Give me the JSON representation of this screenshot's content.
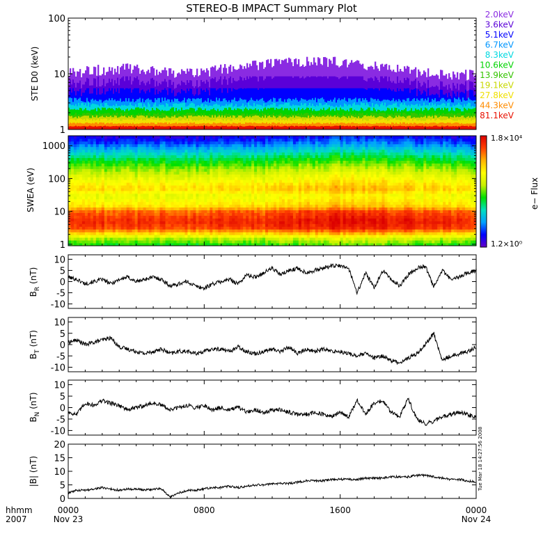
{
  "title": "STEREO-B IMPACT Summary Plot",
  "time_axis": {
    "hhmm_label": "hhmm",
    "year_label": "2007",
    "range_hours": [
      0,
      24
    ],
    "ticks": [
      {
        "hour": 0,
        "label": "0000",
        "date": "Nov 23"
      },
      {
        "hour": 8,
        "label": "0800",
        "date": ""
      },
      {
        "hour": 16,
        "label": "1600",
        "date": ""
      },
      {
        "hour": 24,
        "label": "0000",
        "date": "Nov 24"
      }
    ]
  },
  "side_stamp": "Tue Mar 18 14:27:56 2008",
  "colors": {
    "frame": "#000000",
    "trace": "#000000"
  },
  "colorbar": {
    "label": "e− Flux",
    "max_label": "1.8×10⁴",
    "min_label": "1.2×10⁰",
    "stops": [
      "#6400c8",
      "#0000ff",
      "#00a0ff",
      "#00e0c0",
      "#00e000",
      "#c8f000",
      "#ffff00",
      "#ffb400",
      "#ff4000",
      "#dc0000"
    ]
  },
  "chart_data": [
    {
      "type": "bar",
      "panel": "ste",
      "ylabel": "STE D0 (keV)",
      "yscale": "log",
      "ylim": [
        1,
        100
      ],
      "yticks": [
        "1",
        "10",
        "100"
      ],
      "channels": [
        {
          "name": "2.0keV",
          "color": "#8a2be2",
          "typical_top": 9.5,
          "peak_top": 24
        },
        {
          "name": "3.6keV",
          "color": "#5a00d8",
          "typical_top": 6.0,
          "peak_top": 9
        },
        {
          "name": "5.1keV",
          "color": "#0000ff",
          "typical_top": 4.3,
          "peak_top": 5.5
        },
        {
          "name": "6.7keV",
          "color": "#0096ff",
          "typical_top": 3.4,
          "peak_top": 3.9
        },
        {
          "name": "8.3keV",
          "color": "#00d8e0",
          "typical_top": 2.8,
          "peak_top": 3.1
        },
        {
          "name": "10.6keV",
          "color": "#00d400",
          "typical_top": 2.3,
          "peak_top": 2.5
        },
        {
          "name": "13.9keV",
          "color": "#34c400",
          "typical_top": 1.9,
          "peak_top": 2.0
        },
        {
          "name": "19.1keV",
          "color": "#c8d800",
          "typical_top": 1.7,
          "peak_top": 1.8
        },
        {
          "name": "27.8keV",
          "color": "#f0e000",
          "typical_top": 1.5,
          "peak_top": 1.6
        },
        {
          "name": "44.3keV",
          "color": "#ff8c00",
          "typical_top": 1.3,
          "peak_top": 1.4
        },
        {
          "name": "81.1keV",
          "color": "#e81000",
          "typical_top": 1.15,
          "peak_top": 1.2
        }
      ]
    },
    {
      "type": "heatmap",
      "panel": "swea",
      "ylabel": "SWEA (eV)",
      "yscale": "log",
      "ylim": [
        0.9,
        2000
      ],
      "yticks": [
        "1",
        "10",
        "100",
        "1000"
      ],
      "zscale": "log",
      "zlim": [
        1.2,
        18000
      ],
      "energy_bands": [
        {
          "ev": 1,
          "level": 0.45
        },
        {
          "ev": 1.5,
          "level": 0.55
        },
        {
          "ev": 3,
          "level": 0.88
        },
        {
          "ev": 5,
          "level": 0.93
        },
        {
          "ev": 10,
          "level": 0.85
        },
        {
          "ev": 15,
          "level": 0.7
        },
        {
          "ev": 30,
          "level": 0.62
        },
        {
          "ev": 50,
          "level": 0.72
        },
        {
          "ev": 100,
          "level": 0.62
        },
        {
          "ev": 200,
          "level": 0.52
        },
        {
          "ev": 400,
          "level": 0.4
        },
        {
          "ev": 700,
          "level": 0.28
        },
        {
          "ev": 1200,
          "level": 0.16
        },
        {
          "ev": 1900,
          "level": 0.08
        }
      ]
    },
    {
      "type": "line",
      "panel": "br",
      "ylabel": "BR (nT)",
      "ylabel_main": "B",
      "ylabel_sub": "R",
      "ylabel_unit": "(nT)",
      "ylim": [
        -12,
        12
      ],
      "yticks": [
        -10,
        -5,
        0,
        5,
        10
      ],
      "series": [
        {
          "x": [
            0,
            0.5,
            1,
            1.5,
            2,
            2.5,
            3,
            3.5,
            4,
            4.5,
            5,
            5.5,
            6,
            6.5,
            7,
            7.5,
            8,
            8.5,
            9,
            9.5,
            10,
            10.5,
            11,
            11.5,
            12,
            12.5,
            13,
            13.5,
            14,
            14.5,
            15,
            15.5,
            16,
            16.5,
            17,
            17.5,
            18,
            18.5,
            19,
            19.5,
            20,
            20.5,
            21,
            21.5,
            22,
            22.5,
            23,
            23.5,
            24
          ],
          "y": [
            2,
            1,
            -1,
            0,
            1,
            -1,
            1,
            2,
            0,
            1,
            2,
            1,
            -2,
            -1,
            0,
            -2,
            -3,
            -1,
            0,
            1,
            -1,
            3,
            2,
            4,
            6,
            3,
            5,
            6,
            4,
            5,
            6,
            7,
            7,
            6,
            -5,
            4,
            -3,
            5,
            1,
            -2,
            3,
            6,
            7,
            -2,
            5,
            1,
            2,
            4,
            5
          ]
        }
      ]
    },
    {
      "type": "line",
      "panel": "bt",
      "ylabel": "BT (nT)",
      "ylabel_main": "B",
      "ylabel_sub": "T",
      "ylabel_unit": "(nT)",
      "ylim": [
        -12,
        12
      ],
      "yticks": [
        -10,
        -5,
        0,
        5,
        10
      ],
      "series": [
        {
          "x": [
            0,
            0.5,
            1,
            1.5,
            2,
            2.5,
            3,
            3.5,
            4,
            4.5,
            5,
            5.5,
            6,
            6.5,
            7,
            7.5,
            8,
            8.5,
            9,
            9.5,
            10,
            10.5,
            11,
            11.5,
            12,
            12.5,
            13,
            13.5,
            14,
            14.5,
            15,
            15.5,
            16,
            16.5,
            17,
            17.5,
            18,
            18.5,
            19,
            19.5,
            20,
            20.5,
            21,
            21.5,
            22,
            22.5,
            23,
            23.5,
            24
          ],
          "y": [
            1,
            2,
            0,
            1,
            2,
            3,
            -1,
            -2,
            -3,
            -4,
            -3,
            -2,
            -4,
            -3,
            -3,
            -4,
            -3,
            -2,
            -2,
            -3,
            -1,
            -3,
            -4,
            -3,
            -2,
            -3,
            -1,
            -4,
            -2,
            -3,
            -2,
            -3,
            -3,
            -4,
            -5,
            -4,
            -6,
            -5,
            -7,
            -8,
            -6,
            -4,
            0,
            5,
            -7,
            -5,
            -4,
            -3,
            -1
          ]
        }
      ]
    },
    {
      "type": "line",
      "panel": "bn",
      "ylabel": "BN (nT)",
      "ylabel_main": "B",
      "ylabel_sub": "N",
      "ylabel_unit": "(nT)",
      "ylim": [
        -12,
        12
      ],
      "yticks": [
        -10,
        -5,
        0,
        5,
        10
      ],
      "series": [
        {
          "x": [
            0,
            0.5,
            1,
            1.5,
            2,
            2.5,
            3,
            3.5,
            4,
            4.5,
            5,
            5.5,
            6,
            6.5,
            7,
            7.5,
            8,
            8.5,
            9,
            9.5,
            10,
            10.5,
            11,
            11.5,
            12,
            12.5,
            13,
            13.5,
            14,
            14.5,
            15,
            15.5,
            16,
            16.5,
            17,
            17.5,
            18,
            18.5,
            19,
            19.5,
            20,
            20.5,
            21,
            21.5,
            22,
            22.5,
            23,
            23.5,
            24
          ],
          "y": [
            -2,
            -3,
            2,
            1,
            3,
            2,
            1,
            -1,
            0,
            1,
            2,
            1,
            -1,
            0,
            1,
            0,
            1,
            -1,
            0,
            -1,
            0,
            -2,
            -1,
            -2,
            -1,
            -1,
            -2,
            -3,
            -3,
            -2,
            -3,
            -4,
            -2,
            -4,
            3,
            -3,
            2,
            3,
            -2,
            -4,
            4,
            -5,
            -7,
            -6,
            -4,
            -3,
            -2,
            -3,
            -4
          ]
        }
      ]
    },
    {
      "type": "line",
      "panel": "bmag",
      "ylabel": "|B| (nT)",
      "ylabel_main": "|B|",
      "ylabel_sub": "",
      "ylabel_unit": "(nT)",
      "ylim": [
        0,
        20
      ],
      "yticks": [
        0,
        5,
        10,
        15,
        20
      ],
      "series": [
        {
          "x": [
            0,
            0.5,
            1,
            1.5,
            2,
            2.5,
            3,
            3.5,
            4,
            4.5,
            5,
            5.5,
            6,
            6.5,
            7,
            7.5,
            8,
            8.5,
            9,
            9.5,
            10,
            10.5,
            11,
            11.5,
            12,
            12.5,
            13,
            13.5,
            14,
            14.5,
            15,
            15.5,
            16,
            16.5,
            17,
            17.5,
            18,
            18.5,
            19,
            19.5,
            20,
            20.5,
            21,
            21.5,
            22,
            22.5,
            23,
            23.5,
            24
          ],
          "y": [
            2,
            3,
            3,
            3.5,
            4,
            3.5,
            3,
            3.5,
            3.5,
            3,
            3.5,
            3.5,
            0.5,
            2,
            3,
            3,
            3.5,
            4,
            4,
            4.5,
            4,
            4.5,
            5,
            5,
            5.5,
            5.5,
            5.5,
            6,
            6.5,
            6.5,
            6.5,
            7,
            7,
            7,
            7,
            7.5,
            7.5,
            7.5,
            8,
            8,
            8,
            8.5,
            8.5,
            8,
            7.5,
            7,
            7,
            6.5,
            6
          ]
        }
      ]
    }
  ]
}
